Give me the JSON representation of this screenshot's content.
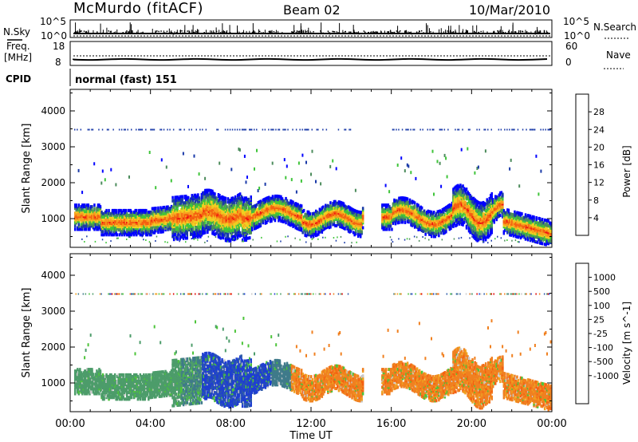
{
  "header": {
    "station": "McMurdo (fitACF)",
    "beam": "Beam 02",
    "date": "10/Mar/2010"
  },
  "strips": {
    "nsky_label": "N.Sky",
    "nsearch_label": "N.Search",
    "freq_label_1": "Freq.",
    "freq_label_2": "[MHz]",
    "nave_label": "Nave",
    "cpid_label": "CPID",
    "cpid_value": "normal (fast) 151",
    "nsky_ticks": [
      "10^5",
      "10^0"
    ],
    "nsearch_ticks": [
      "10^5",
      "10^0"
    ],
    "freq_ticks": [
      "18",
      "8"
    ],
    "nave_ticks": [
      "60",
      "0"
    ]
  },
  "colors": {
    "power": [
      "#0000ff",
      "#1a3aa8",
      "#4c8c5c",
      "#3fc43a",
      "#f0d020",
      "#f7a020",
      "#f46010",
      "#f01010"
    ],
    "velocity": [
      "#1f3fd0",
      "#2c5aa8",
      "#3f7a8a",
      "#4c9c6a",
      "#4cc43a",
      "#c8c8c8",
      "#f0a020",
      "#f08020",
      "#f46010",
      "#e00000"
    ]
  },
  "chart_data": [
    {
      "type": "heatmap",
      "name": "power",
      "ylabel": "Slant Range [km]",
      "ylim": [
        200,
        4600
      ],
      "yticks": [
        1000,
        2000,
        3000,
        4000
      ],
      "xlim": [
        0,
        24
      ],
      "colorbar": {
        "label": "Power [dB]",
        "ticks": [
          "4",
          "8",
          "12",
          "16",
          "20",
          "24",
          "28"
        ],
        "range": [
          0,
          32
        ]
      }
    },
    {
      "type": "heatmap",
      "name": "velocity",
      "ylabel": "Slant Range [km]",
      "ylim": [
        200,
        4600
      ],
      "yticks": [
        1000,
        2000,
        3000,
        4000
      ],
      "xlim": [
        0,
        24
      ],
      "xlabel": "Time UT",
      "xticks": [
        "00:00",
        "04:00",
        "08:00",
        "12:00",
        "16:00",
        "20:00",
        "00:00"
      ],
      "colorbar": {
        "label": "Velocity [m s^-1]",
        "ticks": [
          "1000",
          "500",
          "100",
          "25",
          "-25",
          "-100",
          "-500",
          "-1000"
        ]
      }
    }
  ]
}
